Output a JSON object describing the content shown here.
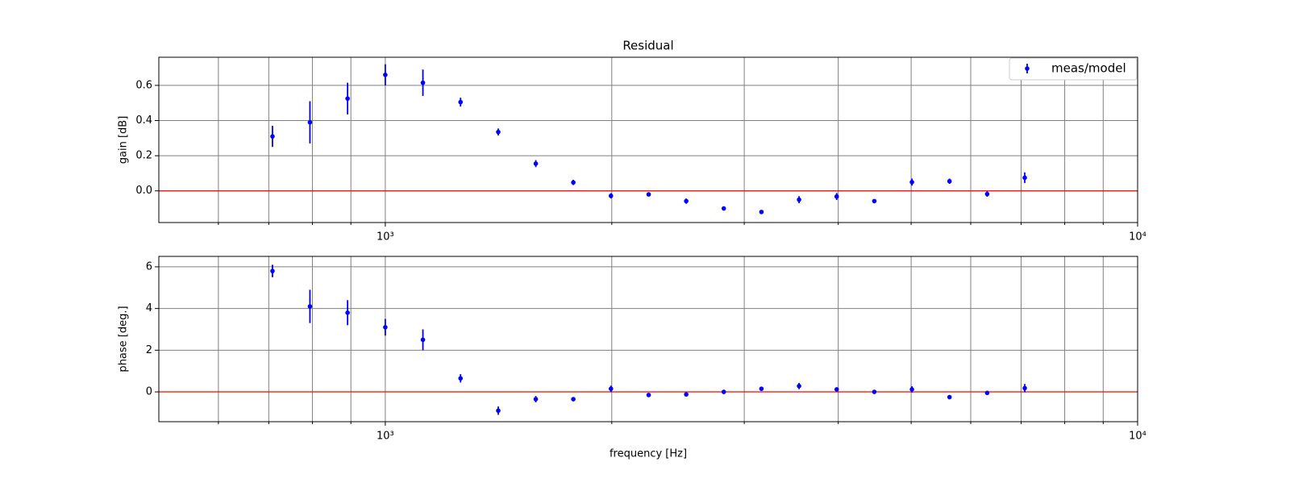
{
  "chart_data": [
    {
      "type": "errorbar",
      "title": "Residual",
      "ylabel": "gain [dB]",
      "log_x": true,
      "grid": true,
      "legend": "upper right",
      "reference_line": 0,
      "reference_color": "#ff0000",
      "x": [
        708,
        794,
        891,
        1000,
        1122,
        1259,
        1413,
        1585,
        1778,
        1995,
        2239,
        2512,
        2818,
        3162,
        3548,
        3981,
        4467,
        5012,
        5623,
        6310,
        7079
      ],
      "series": [
        {
          "name": "meas/model",
          "color": "#0000ff",
          "values": [
            0.31,
            0.39,
            0.525,
            0.66,
            0.615,
            0.505,
            0.335,
            0.155,
            0.048,
            -0.028,
            -0.02,
            -0.058,
            -0.1,
            -0.12,
            -0.05,
            -0.032,
            -0.058,
            0.05,
            0.055,
            -0.018,
            0.075
          ],
          "errors": [
            0.06,
            0.12,
            0.09,
            0.06,
            0.075,
            0.025,
            0.02,
            0.02,
            0.015,
            0.015,
            0.01,
            0.015,
            0.01,
            0.01,
            0.02,
            0.02,
            0.01,
            0.02,
            0.015,
            0.015,
            0.03
          ]
        }
      ],
      "xlim": [
        500,
        10000
      ],
      "xticks": [
        {
          "value": 1000,
          "label": "10³"
        },
        {
          "value": 10000,
          "label": "10⁴"
        }
      ],
      "xminorticks": [
        600,
        700,
        800,
        900,
        2000,
        3000,
        4000,
        5000,
        6000,
        7000,
        8000,
        9000
      ],
      "ylim": [
        -0.18,
        0.76
      ],
      "yticks": [
        0.0,
        0.2,
        0.4,
        0.6
      ]
    },
    {
      "type": "errorbar",
      "ylabel": "phase [deg.]",
      "xlabel": "frequency [Hz]",
      "log_x": true,
      "grid": true,
      "reference_line": 0,
      "reference_color": "#ff0000",
      "x": [
        708,
        794,
        891,
        1000,
        1122,
        1259,
        1413,
        1585,
        1778,
        1995,
        2239,
        2512,
        2818,
        3162,
        3548,
        3981,
        4467,
        5012,
        5623,
        6310,
        7079
      ],
      "series": [
        {
          "color": "#0000ff",
          "values": [
            5.8,
            4.1,
            3.8,
            3.1,
            2.5,
            0.65,
            -0.9,
            -0.35,
            -0.35,
            0.15,
            -0.15,
            -0.12,
            0,
            0.15,
            0.28,
            0.12,
            0,
            0.12,
            -0.25,
            -0.05,
            0.18
          ],
          "errors": [
            0.3,
            0.8,
            0.6,
            0.4,
            0.5,
            0.2,
            0.2,
            0.15,
            0.1,
            0.15,
            0.1,
            0.1,
            0.1,
            0.1,
            0.15,
            0.1,
            0.08,
            0.15,
            0.1,
            0.1,
            0.2
          ]
        }
      ],
      "xlim": [
        500,
        10000
      ],
      "xticks": [
        {
          "value": 1000,
          "label": "10³"
        },
        {
          "value": 10000,
          "label": "10⁴"
        }
      ],
      "xminorticks": [
        600,
        700,
        800,
        900,
        2000,
        3000,
        4000,
        5000,
        6000,
        7000,
        8000,
        9000
      ],
      "ylim": [
        -1.43,
        6.5
      ],
      "yticks": [
        0,
        2,
        4,
        6
      ]
    }
  ]
}
